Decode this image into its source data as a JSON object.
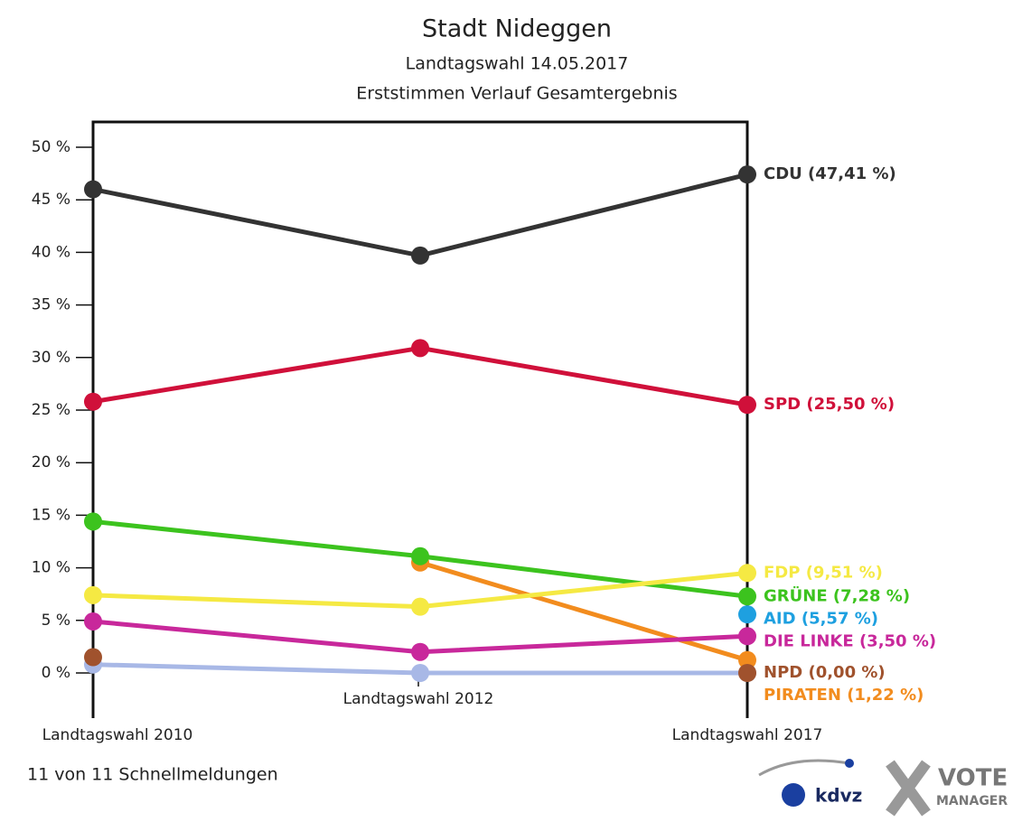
{
  "chart_data": {
    "type": "line",
    "title": "Stadt Nideggen",
    "subtitle": [
      "Landtagswahl 14.05.2017",
      "Erststimmen Verlauf Gesamtergebnis"
    ],
    "categories": [
      "Landtagswahl 2010",
      "Landtagswahl 2012",
      "Landtagswahl 2017"
    ],
    "ylim": [
      0,
      50
    ],
    "yticks": [
      {
        "value": 0,
        "label": "0 %"
      },
      {
        "value": 5,
        "label": "5 %"
      },
      {
        "value": 10,
        "label": "10 %"
      },
      {
        "value": 15,
        "label": "15 %"
      },
      {
        "value": 20,
        "label": "20 %"
      },
      {
        "value": 25,
        "label": "25 %"
      },
      {
        "value": 30,
        "label": "30 %"
      },
      {
        "value": 35,
        "label": "35 %"
      },
      {
        "value": 40,
        "label": "40 %"
      },
      {
        "value": 45,
        "label": "45 %"
      },
      {
        "value": 50,
        "label": "50 %"
      }
    ],
    "series": [
      {
        "name": "CDU",
        "color": "#333333",
        "values": [
          46.0,
          39.7,
          47.41
        ],
        "end_label": "CDU (47,41 %)"
      },
      {
        "name": "SPD",
        "color": "#d0103a",
        "values": [
          25.8,
          30.9,
          25.5
        ],
        "end_label": "SPD (25,50 %)"
      },
      {
        "name": "FDP",
        "color": "#f5e943",
        "values": [
          7.4,
          6.3,
          9.51
        ],
        "end_label": "FDP (9,51 %)"
      },
      {
        "name": "GRÜNE",
        "color": "#3cc31e",
        "values": [
          14.4,
          11.1,
          7.28
        ],
        "end_label": "GRÜNE (7,28 %)"
      },
      {
        "name": "AID",
        "color": "#1ea0e0",
        "values": [
          null,
          null,
          5.57
        ],
        "end_label": "AID (5,57 %)"
      },
      {
        "name": "DIE LINKE",
        "color": "#c8289b",
        "values": [
          4.9,
          2.0,
          3.5
        ],
        "end_label": "DIE LINKE (3,50 %)"
      },
      {
        "name": "NPD",
        "color": "#a0522d",
        "values": [
          1.5,
          null,
          0.0
        ],
        "end_label": "NPD (0,00 %)"
      },
      {
        "name": "PIRATEN",
        "color": "#f28c1e",
        "values": [
          null,
          10.5,
          1.22
        ],
        "end_label": "PIRATEN (1,22 %)"
      },
      {
        "color": "#a8b8e6",
        "values": [
          0.8,
          0.0,
          0.0
        ]
      }
    ],
    "footer": "11 von 11 Schnellmeldungen",
    "logos": [
      "kdvz",
      "VOTE",
      "MANAGER"
    ]
  }
}
